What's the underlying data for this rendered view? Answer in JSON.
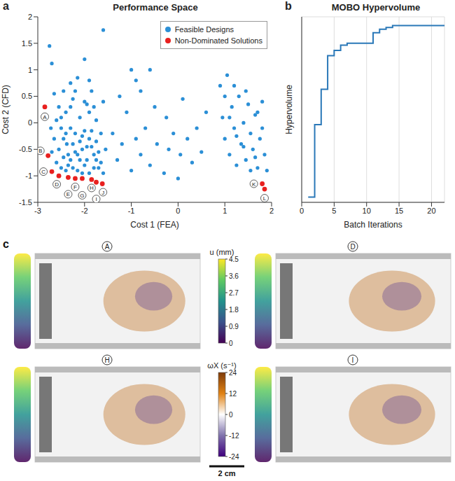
{
  "chart_data": [
    {
      "type": "scatter",
      "panel_label": "a",
      "title": "Performance Space",
      "x_label": "Cost 1 (FEA)",
      "y_label": "Cost 2 (CFD)",
      "xlim": [
        -3,
        2
      ],
      "xticks": [
        -3,
        -2,
        -1,
        0,
        1,
        2
      ],
      "ylim": [
        -1.5,
        2
      ],
      "yticks": [
        -1.5,
        -1,
        -0.5,
        0,
        0.5,
        1,
        1.5,
        2
      ],
      "legend": "upper right",
      "grid": false,
      "series": [
        {
          "name": "Feasible Designs",
          "color": "#2b8fd6",
          "marker": "circle",
          "x": [
            -2.75,
            -2.7,
            -2.65,
            -2.55,
            -2.5,
            -2.45,
            -2.4,
            -2.38,
            -2.3,
            -2.25,
            -2.2,
            -2.15,
            -2.1,
            -2.05,
            -2.0,
            -1.95,
            -1.9,
            -1.85,
            -1.8,
            -1.75,
            -1.7,
            -1.65,
            -1.6,
            -1.55,
            -2.6,
            -2.55,
            -2.5,
            -2.45,
            -2.4,
            -2.35,
            -2.3,
            -2.25,
            -2.2,
            -2.15,
            -2.1,
            -2.05,
            -2.0,
            -1.95,
            -1.9,
            -1.85,
            -1.8,
            -1.75,
            -1.7,
            -1.65,
            -1.6,
            -2.65,
            -2.6,
            -2.5,
            -2.4,
            -2.3,
            -2.2,
            -2.1,
            -2.0,
            -1.9,
            -1.8,
            -2.7,
            -2.35,
            -2.15,
            -1.95,
            -1.75,
            -2.45,
            -2.25,
            -2.05,
            -1.85,
            -2.72,
            -2.0,
            -1.6,
            -1.9,
            -2.3,
            -1.4,
            -1.3,
            -1.2,
            -1.1,
            -1.0,
            -1.0,
            -0.9,
            -0.8,
            -0.8,
            -0.7,
            -0.6,
            -0.5,
            -0.45,
            -0.3,
            -0.25,
            -0.2,
            -0.1,
            0.0,
            0.05,
            0.1,
            0.2,
            0.3,
            0.4,
            0.5,
            0.6,
            -1.25,
            -0.6,
            -0.9,
            0.9,
            0.95,
            1.0,
            1.05,
            1.1,
            1.15,
            1.2,
            1.25,
            1.3,
            1.35,
            1.4,
            1.45,
            1.5,
            1.55,
            1.6,
            1.65,
            1.7,
            1.75,
            1.8,
            1.85,
            1.55,
            1.4,
            1.25,
            1.1,
            1.65,
            1.8,
            1.9,
            1.0,
            1.45,
            1.2,
            1.7
          ],
          "y": [
            1.45,
            1.12,
            0.55,
            0.3,
            -0.1,
            0.6,
            0.2,
            -0.4,
            -0.7,
            0.45,
            -0.2,
            0.85,
            0.1,
            -0.5,
            -0.8,
            0.35,
            -0.3,
            0.6,
            -0.6,
            0.05,
            -0.85,
            -0.2,
            0.4,
            -0.5,
            -0.75,
            -0.5,
            -0.85,
            -0.3,
            -0.9,
            -0.6,
            -0.1,
            -0.85,
            -0.55,
            -0.9,
            -0.35,
            -0.95,
            -0.15,
            -0.7,
            -0.95,
            -0.45,
            -0.85,
            -0.35,
            -0.55,
            -0.75,
            -0.95,
            -0.3,
            0.05,
            0.1,
            -0.2,
            0.3,
            0.6,
            -0.7,
            0.4,
            0.2,
            0.3,
            -0.55,
            -0.8,
            -0.6,
            -0.45,
            -0.7,
            -0.65,
            -0.4,
            -0.25,
            -0.15,
            -0.1,
            1.2,
            1.75,
            0.8,
            0.75,
            -0.2,
            -0.7,
            -0.4,
            0.2,
            1.0,
            -0.9,
            -0.3,
            0.6,
            -0.6,
            -0.1,
            -0.8,
            0.3,
            -0.4,
            -0.95,
            0.1,
            -0.5,
            -0.2,
            -1.05,
            -0.6,
            0.45,
            -0.3,
            -0.75,
            -0.1,
            -0.55,
            0.2,
            0.5,
            1.0,
            0.8,
            0.7,
            0.1,
            -0.3,
            0.9,
            -0.6,
            0.3,
            -0.1,
            -0.8,
            0.5,
            -0.4,
            0.0,
            -0.7,
            0.35,
            -0.2,
            -0.5,
            0.15,
            -0.85,
            -0.3,
            0.4,
            -0.6,
            -0.9,
            -0.45,
            -0.25,
            0.1,
            -0.65,
            -0.1,
            -0.9,
            0.5,
            0.6,
            0.7,
            0.2
          ]
        },
        {
          "name": "Non-Dominated Solutions",
          "color": "#e8201f",
          "marker": "circle",
          "x": [
            -2.85,
            -2.78,
            -2.7,
            -2.55,
            -2.35,
            -2.2,
            -2.05,
            -1.85,
            -1.75,
            -1.62,
            1.8,
            1.85
          ],
          "y": [
            0.3,
            -0.62,
            -0.92,
            -1.0,
            -1.03,
            -1.05,
            -1.05,
            -1.07,
            -1.12,
            -1.15,
            -1.15,
            -1.25
          ],
          "labels": [
            "A",
            "B",
            "C",
            "D",
            "E",
            "F",
            "G",
            "H",
            "I",
            "J",
            "K",
            "L"
          ]
        }
      ]
    },
    {
      "type": "line",
      "panel_label": "b",
      "title": "MOBO Hypervolume",
      "x_label": "Batch Iterations",
      "y_label": "Hypervolume",
      "xlim": [
        0,
        22
      ],
      "xticks": [
        0,
        5,
        10,
        15,
        20
      ],
      "ylim": [
        0,
        1.05
      ],
      "yticks": [
        0.25,
        0.5,
        0.75,
        1
      ],
      "grid": true,
      "tick_labels": "x",
      "line_style": "step",
      "series": [
        {
          "name": "Hypervolume",
          "color": "#2a78b8",
          "x": [
            1,
            2,
            3,
            4,
            5,
            6,
            7,
            11,
            12,
            13,
            14,
            22
          ],
          "values": [
            0.03,
            0.44,
            0.64,
            0.83,
            0.86,
            0.89,
            0.9,
            0.96,
            0.98,
            0.99,
            1.0,
            1.0
          ]
        }
      ]
    }
  ],
  "panel_c": {
    "panel_label": "c",
    "views": [
      "A",
      "D",
      "H",
      "I"
    ],
    "colorbars": [
      {
        "label": "u (mm)",
        "range": [
          0,
          4.5
        ],
        "ticks": [
          0,
          0.9,
          1.8,
          2.7,
          3.6,
          4.5
        ],
        "colors": [
          "#440154",
          "#3b528b",
          "#21918c",
          "#5ec962",
          "#fde725"
        ]
      },
      {
        "label": "ωX (s⁻¹)",
        "range": [
          -24,
          24
        ],
        "ticks": [
          -24,
          -12,
          0,
          12,
          24
        ],
        "colors": [
          "#3f007d",
          "#8073ac",
          "#ffffff",
          "#e08214",
          "#7f3b08"
        ]
      }
    ],
    "scale_bar": "2 cm"
  }
}
